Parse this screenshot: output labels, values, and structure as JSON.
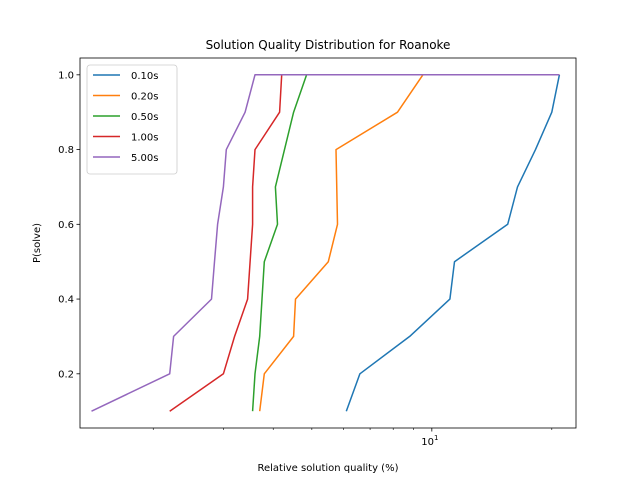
{
  "chart_data": {
    "type": "line",
    "title": "Solution Quality Distribution for Roanoke",
    "xlabel": "Relative solution quality (%)",
    "ylabel": "P(solve)",
    "xscale": "log",
    "xlim": [
      1.31,
      23.0
    ],
    "ylim": [
      0.055,
      1.045
    ],
    "xticks": [
      {
        "value": 10,
        "label": "10^1",
        "base": "10",
        "exp": "1"
      }
    ],
    "xminor": [
      2,
      3,
      4,
      5,
      6,
      7,
      8,
      9,
      20
    ],
    "yticks": [
      {
        "value": 0.2,
        "label": "0.2"
      },
      {
        "value": 0.4,
        "label": "0.4"
      },
      {
        "value": 0.6,
        "label": "0.6"
      },
      {
        "value": 0.8,
        "label": "0.8"
      },
      {
        "value": 1.0,
        "label": "1.0"
      }
    ],
    "grid": false,
    "legend_position": "top-left",
    "series": [
      {
        "name": "0.10s",
        "color": "#1f77b4",
        "x": [
          6.1,
          6.6,
          8.8,
          11.1,
          11.4,
          15.5,
          16.4,
          18.2,
          20.0,
          20.9
        ],
        "y": [
          0.1,
          0.2,
          0.3,
          0.4,
          0.5,
          0.6,
          0.7,
          0.8,
          0.9,
          1.0
        ]
      },
      {
        "name": "0.20s",
        "color": "#ff7f0e",
        "x": [
          3.7,
          3.8,
          4.5,
          4.55,
          5.5,
          5.8,
          5.75,
          8.2,
          9.5,
          20.9
        ],
        "y": [
          0.1,
          0.2,
          0.3,
          0.4,
          0.5,
          0.6,
          0.8,
          0.9,
          1.0,
          1.0
        ]
      },
      {
        "name": "0.50s",
        "color": "#2ca02c",
        "x": [
          3.55,
          3.6,
          3.7,
          3.75,
          3.8,
          4.1,
          4.05,
          4.5,
          4.85,
          20.9
        ],
        "y": [
          0.1,
          0.2,
          0.3,
          0.4,
          0.5,
          0.6,
          0.7,
          0.9,
          1.0,
          1.0
        ]
      },
      {
        "name": "1.00s",
        "color": "#d62728",
        "x": [
          2.2,
          3.0,
          3.2,
          3.45,
          3.55,
          3.55,
          3.6,
          4.15,
          4.2,
          20.9
        ],
        "y": [
          0.1,
          0.2,
          0.3,
          0.4,
          0.6,
          0.7,
          0.8,
          0.9,
          1.0,
          1.0
        ]
      },
      {
        "name": "5.00s",
        "color": "#9467bd",
        "x": [
          1.4,
          2.2,
          2.25,
          2.8,
          2.85,
          2.9,
          3.0,
          3.05,
          3.4,
          3.6,
          20.9
        ],
        "y": [
          0.1,
          0.2,
          0.3,
          0.4,
          0.5,
          0.6,
          0.7,
          0.8,
          0.9,
          1.0,
          1.0
        ]
      }
    ]
  }
}
